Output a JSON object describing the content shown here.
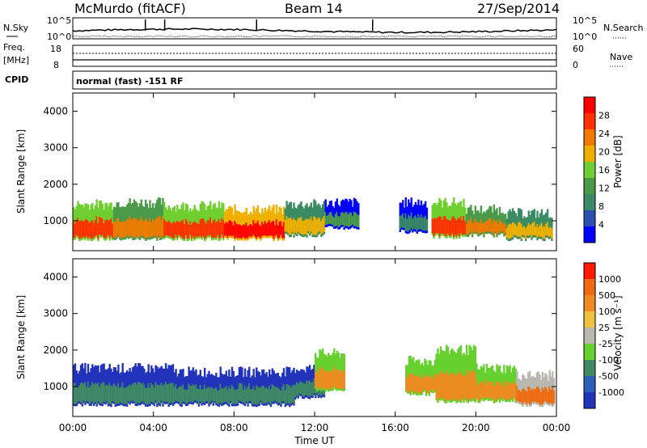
{
  "header": {
    "station": "McMurdo (fitACF)",
    "beam": "Beam 14",
    "date": "27/Sep/2014"
  },
  "top_panels": {
    "nsky_label": "N.Sky",
    "nsky_ticks": [
      "10^5",
      "10^0"
    ],
    "nsearch_label": "N.Search",
    "nsearch_ticks": [
      "10^5",
      "10^0"
    ],
    "freq_label": "Freq.",
    "freq_unit": "[MHz]",
    "freq_ticks": [
      "18",
      "8"
    ],
    "nave_label": "Nave",
    "nave_ticks": [
      "60",
      "0"
    ],
    "cpid_label": "CPID",
    "cpid_text": "normal (fast) -151 RF"
  },
  "colors": {
    "power": [
      "#0000ff",
      "#2b4fb0",
      "#3a8a63",
      "#4a9a4a",
      "#6fcf30",
      "#f0b000",
      "#f07a00",
      "#ff3000",
      "#ff0000"
    ],
    "velocity": [
      "#2233bb",
      "#2b5fb8",
      "#3f8a63",
      "#66d02f",
      "#b8b8b0",
      "#f0c040",
      "#f08a20",
      "#f06a10",
      "#ff1a00"
    ]
  },
  "chart_data": [
    {
      "type": "heatmap",
      "panel": "power",
      "xlabel": "",
      "ylabel": "Slant Range [km]",
      "x_range_hours": [
        0,
        24
      ],
      "ylim": [
        180,
        4500
      ],
      "y_ticks": [
        "1000",
        "2000",
        "3000",
        "4000"
      ],
      "colorbar": {
        "label": "Power [dB]",
        "ticks": [
          "28",
          "24",
          "20",
          "16",
          "12",
          "8",
          "4"
        ]
      },
      "regions": [
        {
          "t": [
            0.0,
            2.0
          ],
          "r": [
            500,
            1450
          ],
          "level": 7
        },
        {
          "t": [
            2.0,
            4.5
          ],
          "r": [
            500,
            1500
          ],
          "level": 6
        },
        {
          "t": [
            4.5,
            7.5
          ],
          "r": [
            500,
            1400
          ],
          "level": 7
        },
        {
          "t": [
            7.5,
            10.5
          ],
          "r": [
            500,
            1300
          ],
          "level": 8
        },
        {
          "t": [
            10.5,
            12.5
          ],
          "r": [
            600,
            1450
          ],
          "level": 5
        },
        {
          "t": [
            12.5,
            14.2
          ],
          "r": [
            800,
            1500
          ],
          "level": 3
        },
        {
          "t": [
            16.2,
            17.6
          ],
          "r": [
            700,
            1500
          ],
          "level": 2
        },
        {
          "t": [
            17.8,
            19.5
          ],
          "r": [
            550,
            1500
          ],
          "level": 7
        },
        {
          "t": [
            19.5,
            21.5
          ],
          "r": [
            600,
            1300
          ],
          "level": 6
        },
        {
          "t": [
            21.5,
            23.8
          ],
          "r": [
            500,
            1200
          ],
          "level": 5
        }
      ],
      "x_ticks": [
        "00:00",
        "04:00",
        "08:00",
        "12:00",
        "16:00",
        "20:00",
        "00:00"
      ]
    },
    {
      "type": "heatmap",
      "panel": "velocity",
      "xlabel": "Time UT",
      "ylabel": "Slant Range [km]",
      "x_range_hours": [
        0,
        24
      ],
      "ylim": [
        180,
        4500
      ],
      "y_ticks": [
        "1000",
        "2000",
        "3000",
        "4000"
      ],
      "x_ticks": [
        "00:00",
        "04:00",
        "08:00",
        "12:00",
        "16:00",
        "20:00",
        "00:00"
      ],
      "colorbar": {
        "label": "Velocity [m s⁻¹]",
        "ticks": [
          "1000",
          "500",
          "100",
          "25",
          "-25",
          "-100",
          "-500",
          "-1000"
        ]
      },
      "regions": [
        {
          "t": [
            0.0,
            5.0
          ],
          "r": [
            500,
            1500
          ],
          "level": 2
        },
        {
          "t": [
            5.0,
            11.0
          ],
          "r": [
            500,
            1400
          ],
          "level": 2
        },
        {
          "t": [
            11.0,
            12.5
          ],
          "r": [
            700,
            1500
          ],
          "level": 2
        },
        {
          "t": [
            12.0,
            13.5
          ],
          "r": [
            900,
            1900
          ],
          "level": 6
        },
        {
          "t": [
            16.5,
            18.0
          ],
          "r": [
            800,
            1700
          ],
          "level": 6
        },
        {
          "t": [
            18.0,
            20.0
          ],
          "r": [
            600,
            2000
          ],
          "level": 6
        },
        {
          "t": [
            20.0,
            22.0
          ],
          "r": [
            600,
            1500
          ],
          "level": 6
        },
        {
          "t": [
            22.0,
            23.9
          ],
          "r": [
            500,
            1300
          ],
          "level": 7
        }
      ]
    }
  ]
}
